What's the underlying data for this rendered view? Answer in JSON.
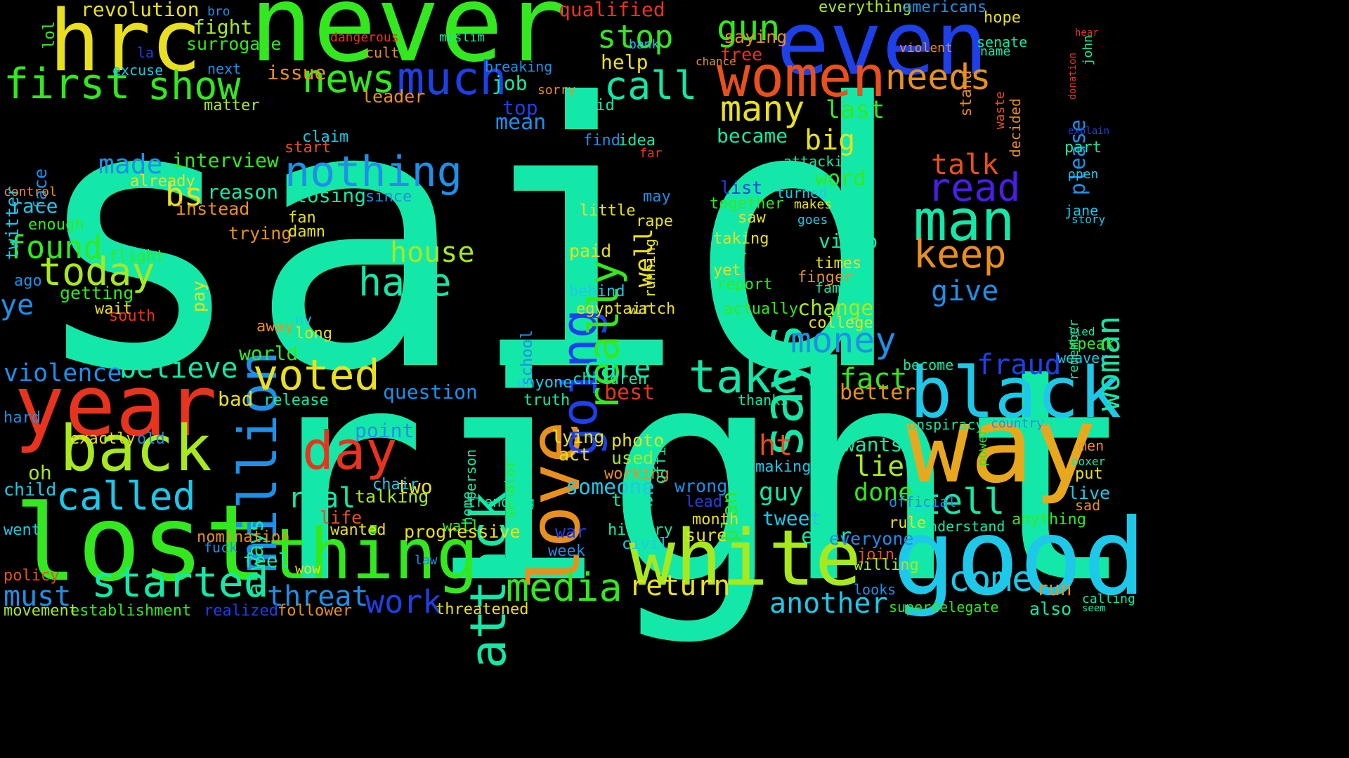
{
  "background": "#000000",
  "palette": {
    "teal": "#14e8a8",
    "green": "#33e81e",
    "lime": "#a8e81e",
    "yellow": "#e8e01e",
    "orange": "#e8901e",
    "red": "#e8341e",
    "blue": "#1e40e8",
    "cyan": "#1ec8e8",
    "sky": "#1e90e8",
    "indigo": "#4a1ee8",
    "mint": "#1ee8c8"
  },
  "words": [
    {
      "text": "said",
      "color": "#14e8a8"
    },
    {
      "text": "right",
      "color": "#14e8a8"
    },
    {
      "text": "never",
      "color": "#33e81e"
    },
    {
      "text": "hrc",
      "color": "#e8e01e"
    },
    {
      "text": "even",
      "color": "#1e40e8"
    },
    {
      "text": "year",
      "color": "#e8341e"
    },
    {
      "text": "lost",
      "color": "#33e81e"
    },
    {
      "text": "way",
      "color": "#e8a81e"
    },
    {
      "text": "good",
      "color": "#1ec8e8"
    },
    {
      "text": "black",
      "color": "#1ec8e8"
    },
    {
      "text": "white",
      "color": "#a8e81e"
    },
    {
      "text": "thing",
      "color": "#33e81e"
    },
    {
      "text": "back",
      "color": "#a8e81e"
    },
    {
      "text": "women",
      "color": "#e8501e"
    },
    {
      "text": "love",
      "color": "#e8901e"
    },
    {
      "text": "million",
      "color": "#1e90e8"
    },
    {
      "text": "nothing",
      "color": "#1e90e8"
    },
    {
      "text": "man",
      "color": "#14e8a8"
    },
    {
      "text": "says",
      "color": "#14e8a8"
    },
    {
      "text": "going",
      "color": "#1e40e8"
    },
    {
      "text": "first",
      "color": "#33e81e"
    },
    {
      "text": "much",
      "color": "#1e40e8"
    },
    {
      "text": "news",
      "color": "#33e81e"
    },
    {
      "text": "show",
      "color": "#33e81e"
    },
    {
      "text": "started",
      "color": "#14e8a8"
    },
    {
      "text": "media",
      "color": "#33e81e"
    },
    {
      "text": "day",
      "color": "#e8341e"
    },
    {
      "text": "attack",
      "color": "#14e8a8"
    },
    {
      "text": "really",
      "color": "#33e81e"
    },
    {
      "text": "called",
      "color": "#1ec8e8"
    },
    {
      "text": "voted",
      "color": "#e8e01e"
    },
    {
      "text": "take",
      "color": "#14e8a8"
    },
    {
      "text": "hate",
      "color": "#14e8a8"
    },
    {
      "text": "today",
      "color": "#a8e81e"
    },
    {
      "text": "keep",
      "color": "#e8901e"
    },
    {
      "text": "read",
      "color": "#4a1ee8"
    },
    {
      "text": "money",
      "color": "#1e90e8"
    },
    {
      "text": "tell",
      "color": "#14e8a8"
    },
    {
      "text": "come",
      "color": "#1ec8e8"
    },
    {
      "text": "call",
      "color": "#14e8a8"
    },
    {
      "text": "needs",
      "color": "#e8901e"
    },
    {
      "text": "many",
      "color": "#e8e01e"
    },
    {
      "text": "gun",
      "color": "#33e81e"
    },
    {
      "text": "stop",
      "color": "#33e81e"
    },
    {
      "text": "work",
      "color": "#1e40e8"
    },
    {
      "text": "found",
      "color": "#33e81e"
    },
    {
      "text": "must",
      "color": "#1e90e8"
    },
    {
      "text": "threat",
      "color": "#1e90e8"
    },
    {
      "text": "return",
      "color": "#e8e01e"
    },
    {
      "text": "another",
      "color": "#1ec8e8"
    },
    {
      "text": "woman",
      "color": "#14e8a8"
    },
    {
      "text": "give",
      "color": "#1e90e8"
    },
    {
      "text": "house",
      "color": "#a8e81e"
    },
    {
      "text": "fact",
      "color": "#33e81e"
    },
    {
      "text": "believe",
      "color": "#14e8a8"
    },
    {
      "text": "violence",
      "color": "#1e90e8"
    },
    {
      "text": "big",
      "color": "#e8e01e"
    },
    {
      "text": "talk",
      "color": "#e8501e"
    },
    {
      "text": "care",
      "color": "#14e8a8"
    },
    {
      "text": "bs",
      "color": "#e8e01e"
    },
    {
      "text": "fraud",
      "color": "#1e40e8"
    },
    {
      "text": "ye",
      "color": "#1e90e8"
    },
    {
      "text": "revolution",
      "color": "#e8e01e"
    },
    {
      "text": "qualified",
      "color": "#e8341e"
    },
    {
      "text": "everything",
      "color": "#a8e81e"
    },
    {
      "text": "americans",
      "color": "#1e90e8"
    },
    {
      "text": "fight",
      "color": "#a8e81e"
    },
    {
      "text": "surrogate",
      "color": "#33e81e"
    },
    {
      "text": "made",
      "color": "#1e90e8"
    },
    {
      "text": "interview",
      "color": "#33e81e"
    },
    {
      "text": "reason",
      "color": "#14e8a8"
    },
    {
      "text": "instead",
      "color": "#e8901e"
    },
    {
      "text": "trying",
      "color": "#e8901e"
    },
    {
      "text": "losing",
      "color": "#14e8a8"
    },
    {
      "text": "since",
      "color": "#1e90e8"
    },
    {
      "text": "question",
      "color": "#1e90e8"
    },
    {
      "text": "point",
      "color": "#1e90e8"
    },
    {
      "text": "real",
      "color": "#14e8a8"
    },
    {
      "text": "always",
      "color": "#14e8a8"
    },
    {
      "text": "world",
      "color": "#33e81e"
    },
    {
      "text": "feel",
      "color": "#14e8a8"
    },
    {
      "text": "lie",
      "color": "#a8e81e"
    },
    {
      "text": "done",
      "color": "#33e81e"
    },
    {
      "text": "someone",
      "color": "#1ec8e8"
    },
    {
      "text": "guy",
      "color": "#14e8a8"
    },
    {
      "text": "ht",
      "color": "#e8501e"
    },
    {
      "text": "better",
      "color": "#e8901e"
    },
    {
      "text": "word",
      "color": "#33e81e"
    },
    {
      "text": "last",
      "color": "#33e81e"
    },
    {
      "text": "change",
      "color": "#a8e81e"
    },
    {
      "text": "video",
      "color": "#14e8a8"
    },
    {
      "text": "tweet",
      "color": "#1ec8e8"
    },
    {
      "text": "wants",
      "color": "#14e8a8"
    },
    {
      "text": "please",
      "color": "#1e90e8"
    },
    {
      "text": "best",
      "color": "#e8341e"
    },
    {
      "text": "two",
      "color": "#e8e01e"
    },
    {
      "text": "twitter",
      "color": "#1ec8e8"
    },
    {
      "text": "face",
      "color": "#1e90e8"
    },
    {
      "text": "race",
      "color": "#1ec8e8"
    },
    {
      "text": "job",
      "color": "#14e8a8"
    },
    {
      "text": "top",
      "color": "#1e40e8"
    },
    {
      "text": "mean",
      "color": "#1e90e8"
    },
    {
      "text": "help",
      "color": "#e8e01e"
    },
    {
      "text": "issue",
      "color": "#e8901e"
    },
    {
      "text": "became",
      "color": "#14e8a8"
    },
    {
      "text": "list",
      "color": "#1e40e8"
    },
    {
      "text": "ever",
      "color": "#14e8a8"
    },
    {
      "text": "sure",
      "color": "#e8e01e"
    },
    {
      "text": "wrong",
      "color": "#1e90e8"
    },
    {
      "text": "plan",
      "color": "#33e81e"
    },
    {
      "text": "used",
      "color": "#a8e81e"
    },
    {
      "text": "working",
      "color": "#e8901e"
    },
    {
      "text": "true",
      "color": "#14e8a8"
    },
    {
      "text": "history",
      "color": "#14e8a8"
    },
    {
      "text": "civil",
      "color": "#1ec8e8"
    },
    {
      "text": "photo",
      "color": "#e8e01e"
    },
    {
      "text": "lying",
      "color": "#e8e01e"
    },
    {
      "text": "act",
      "color": "#e8e01e"
    },
    {
      "text": "office",
      "color": "#14e8a8"
    },
    {
      "text": "children",
      "color": "#14e8a8"
    },
    {
      "text": "anyone",
      "color": "#1ec8e8"
    },
    {
      "text": "truth",
      "color": "#14e8a8"
    },
    {
      "text": "death",
      "color": "#14e8a8"
    },
    {
      "text": "school",
      "color": "#1e90e8"
    },
    {
      "text": "thought",
      "color": "#14e8a8"
    },
    {
      "text": "senator",
      "color": "#33e81e"
    },
    {
      "text": "person",
      "color": "#14e8a8"
    },
    {
      "text": "home",
      "color": "#14e8a8"
    },
    {
      "text": "wall",
      "color": "#33e81e"
    },
    {
      "text": "trending",
      "color": "#14e8a8"
    },
    {
      "text": "talking",
      "color": "#a8e81e"
    },
    {
      "text": "life",
      "color": "#e8501e"
    },
    {
      "text": "wanted",
      "color": "#e8e01e"
    },
    {
      "text": "progressive",
      "color": "#e8e01e"
    },
    {
      "text": "chair",
      "color": "#1ec8e8"
    },
    {
      "text": "oh",
      "color": "#a8e81e"
    },
    {
      "text": "exactly",
      "color": "#e8e01e"
    },
    {
      "text": "old",
      "color": "#1e90e8"
    },
    {
      "text": "bad",
      "color": "#e8e01e"
    },
    {
      "text": "release",
      "color": "#14e8a8"
    },
    {
      "text": "child",
      "color": "#1ec8e8"
    },
    {
      "text": "nomination",
      "color": "#e8901e"
    },
    {
      "text": "establishment",
      "color": "#33e81e"
    },
    {
      "text": "movement",
      "color": "#a8e81e"
    },
    {
      "text": "policy",
      "color": "#e8501e"
    },
    {
      "text": "went",
      "color": "#1ec8e8"
    },
    {
      "text": "hard",
      "color": "#1e90e8"
    },
    {
      "text": "follower",
      "color": "#e8901e"
    },
    {
      "text": "realized",
      "color": "#1e40e8"
    },
    {
      "text": "threatened",
      "color": "#e8e01e"
    },
    {
      "text": "superdelegate",
      "color": "#33e81e"
    },
    {
      "text": "also",
      "color": "#14e8a8"
    },
    {
      "text": "run",
      "color": "#e8901e"
    },
    {
      "text": "calling",
      "color": "#14e8a8"
    },
    {
      "text": "seem",
      "color": "#14e8a8"
    },
    {
      "text": "speak",
      "color": "#33e81e"
    },
    {
      "text": "lied",
      "color": "#14e8a8"
    },
    {
      "text": "weaver",
      "color": "#1ec8e8"
    },
    {
      "text": "remember",
      "color": "#14e8a8"
    },
    {
      "text": "jane",
      "color": "#1ec8e8"
    },
    {
      "text": "story",
      "color": "#1ec8e8"
    },
    {
      "text": "part",
      "color": "#14e8a8"
    },
    {
      "text": "open",
      "color": "#1ec8e8"
    },
    {
      "text": "explain",
      "color": "#1e40e8"
    },
    {
      "text": "john",
      "color": "#14e8a8"
    },
    {
      "text": "donation",
      "color": "#e8341e"
    },
    {
      "text": "hear",
      "color": "#e8341e"
    },
    {
      "text": "hope",
      "color": "#e8e01e"
    },
    {
      "text": "senate",
      "color": "#14e8a8"
    },
    {
      "text": "name",
      "color": "#14e8a8"
    },
    {
      "text": "violent",
      "color": "#e8901e"
    },
    {
      "text": "stand",
      "color": "#e8901e"
    },
    {
      "text": "waste",
      "color": "#e8501e"
    },
    {
      "text": "decided",
      "color": "#e8901e"
    },
    {
      "text": "men",
      "color": "#e8901e"
    },
    {
      "text": "boxer",
      "color": "#14e8a8"
    },
    {
      "text": "put",
      "color": "#e8e01e"
    },
    {
      "text": "live",
      "color": "#1ec8e8"
    },
    {
      "text": "sad",
      "color": "#e8901e"
    },
    {
      "text": "anything",
      "color": "#33e81e"
    },
    {
      "text": "understand",
      "color": "#14e8a8"
    },
    {
      "text": "rule",
      "color": "#e8e01e"
    },
    {
      "text": "official",
      "color": "#1e90e8"
    },
    {
      "text": "country",
      "color": "#1e90e8"
    },
    {
      "text": "conspiracy",
      "color": "#14e8a8"
    },
    {
      "text": "become",
      "color": "#14e8a8"
    },
    {
      "text": "power",
      "color": "#33e81e"
    },
    {
      "text": "use",
      "color": "#14e8a8"
    },
    {
      "text": "thanks",
      "color": "#14e8a8"
    },
    {
      "text": "making",
      "color": "#1ec8e8"
    },
    {
      "text": "everyone",
      "color": "#1e90e8"
    },
    {
      "text": "join",
      "color": "#e8501e"
    },
    {
      "text": "willing",
      "color": "#a8e81e"
    },
    {
      "text": "looks",
      "color": "#1e90e8"
    },
    {
      "text": "week",
      "color": "#1e90e8"
    },
    {
      "text": "war",
      "color": "#1e40e8"
    },
    {
      "text": "month",
      "color": "#e8e01e"
    },
    {
      "text": "lead",
      "color": "#1e40e8"
    },
    {
      "text": "yet",
      "color": "#e8e01e"
    },
    {
      "text": "poor",
      "color": "#14e8a8"
    },
    {
      "text": "report",
      "color": "#33e81e"
    },
    {
      "text": "actually",
      "color": "#33e81e"
    },
    {
      "text": "times",
      "color": "#e8e01e"
    },
    {
      "text": "finger",
      "color": "#e8901e"
    },
    {
      "text": "family",
      "color": "#14e8a8"
    },
    {
      "text": "college",
      "color": "#e8e01e"
    },
    {
      "text": "saw",
      "color": "#e8e01e"
    },
    {
      "text": "taking",
      "color": "#e8e01e"
    },
    {
      "text": "together",
      "color": "#33e81e"
    },
    {
      "text": "turned",
      "color": "#1ec8e8"
    },
    {
      "text": "makes",
      "color": "#e8e01e"
    },
    {
      "text": "goes",
      "color": "#1ec8e8"
    },
    {
      "text": "attacking",
      "color": "#14e8a8"
    },
    {
      "text": "well",
      "color": "#e8e01e"
    },
    {
      "text": "running",
      "color": "#e8e01e"
    },
    {
      "text": "rape",
      "color": "#e8e01e"
    },
    {
      "text": "watch",
      "color": "#e8e01e"
    },
    {
      "text": "may",
      "color": "#1e90e8"
    },
    {
      "text": "far",
      "color": "#e8341e"
    },
    {
      "text": "idea",
      "color": "#14e8a8"
    },
    {
      "text": "find",
      "color": "#1e90e8"
    },
    {
      "text": "little",
      "color": "#e8e01e"
    },
    {
      "text": "paid",
      "color": "#e8e01e"
    },
    {
      "text": "behind",
      "color": "#1ec8e8"
    },
    {
      "text": "egyptair",
      "color": "#e8e01e"
    },
    {
      "text": "kid",
      "color": "#14e8a8"
    },
    {
      "text": "free",
      "color": "#e8341e"
    },
    {
      "text": "saying",
      "color": "#e8901e"
    },
    {
      "text": "leader",
      "color": "#e8901e"
    },
    {
      "text": "claim",
      "color": "#1ec8e8"
    },
    {
      "text": "start",
      "color": "#e8501e"
    },
    {
      "text": "already",
      "color": "#e8e01e"
    },
    {
      "text": "getting",
      "color": "#33e81e"
    },
    {
      "text": "flight",
      "color": "#33e81e"
    },
    {
      "text": "wait",
      "color": "#e8e01e"
    },
    {
      "text": "south",
      "color": "#e8341e"
    },
    {
      "text": "pay",
      "color": "#e8e01e"
    },
    {
      "text": "away",
      "color": "#e8901e"
    },
    {
      "text": "long",
      "color": "#e8e01e"
    },
    {
      "text": "nv",
      "color": "#1ec8e8"
    },
    {
      "text": "fan",
      "color": "#e8e01e"
    },
    {
      "text": "damn",
      "color": "#e8e01e"
    },
    {
      "text": "enough",
      "color": "#33e81e"
    },
    {
      "text": "control",
      "color": "#e8901e"
    },
    {
      "text": "next",
      "color": "#1e90e8"
    },
    {
      "text": "matter",
      "color": "#a8e81e"
    },
    {
      "text": "lol",
      "color": "#33e81e"
    },
    {
      "text": "excuse",
      "color": "#1ec8e8"
    },
    {
      "text": "bro",
      "color": "#1e90e8"
    },
    {
      "text": "la",
      "color": "#1e40e8"
    },
    {
      "text": "muslim",
      "color": "#14e8a8"
    },
    {
      "text": "dangerous",
      "color": "#e8341e"
    },
    {
      "text": "cult",
      "color": "#e8901e"
    },
    {
      "text": "breaking",
      "color": "#1e90e8"
    },
    {
      "text": "bank",
      "color": "#1ec8e8"
    },
    {
      "text": "sorry",
      "color": "#e8901e"
    },
    {
      "text": "chance",
      "color": "#e8901e"
    },
    {
      "text": "ago",
      "color": "#1e90e8"
    },
    {
      "text": "fuck",
      "color": "#1e90e8"
    },
    {
      "text": "wow",
      "color": "#e8e01e"
    },
    {
      "text": "law",
      "color": "#1e90e8"
    }
  ]
}
